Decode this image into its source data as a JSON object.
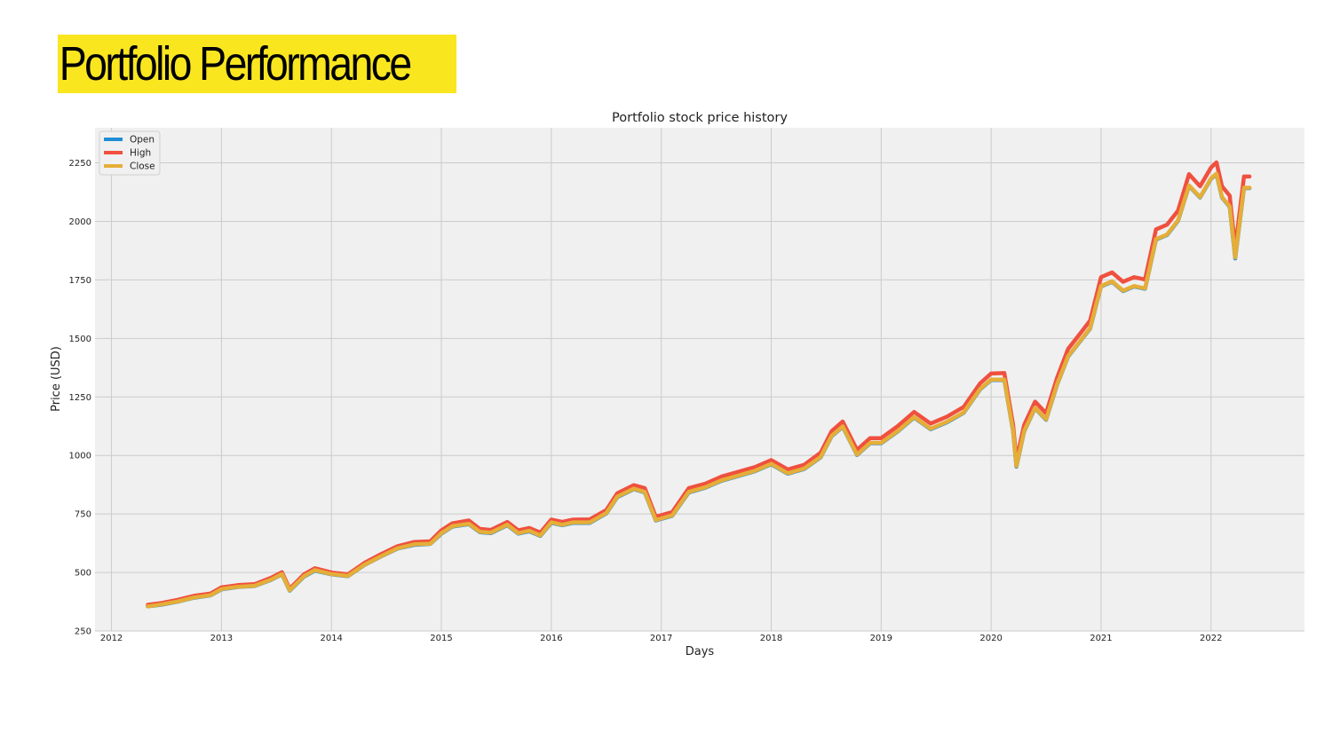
{
  "slide": {
    "title": "Portfolio Performance"
  },
  "colors": {
    "title_highlight": "#f9e61f",
    "open": "#1f8dd6",
    "high": "#f0503f",
    "close": "#e5ae38",
    "plot_bg": "#f0f0f0",
    "grid": "#cbcbcb"
  },
  "chart_data": {
    "type": "line",
    "title": "Portfolio stock price history",
    "xlabel": "Days",
    "ylabel": "Price (USD)",
    "xlim": [
      2011.85,
      2022.85
    ],
    "ylim": [
      250,
      2400
    ],
    "xticks": [
      2012,
      2013,
      2014,
      2015,
      2016,
      2017,
      2018,
      2019,
      2020,
      2021,
      2022
    ],
    "xtick_labels": [
      "2012",
      "2013",
      "2014",
      "2015",
      "2016",
      "2017",
      "2018",
      "2019",
      "2020",
      "2021",
      "2022"
    ],
    "yticks": [
      250,
      500,
      750,
      1000,
      1250,
      1500,
      1750,
      2000,
      2250
    ],
    "ytick_labels": [
      "250",
      "500",
      "750",
      "1000",
      "1250",
      "1500",
      "1750",
      "2000",
      "2250"
    ],
    "grid": true,
    "legend_position": "top-left",
    "x": [
      2012.33,
      2012.45,
      2012.6,
      2012.75,
      2012.9,
      2013.0,
      2013.15,
      2013.3,
      2013.45,
      2013.55,
      2013.62,
      2013.75,
      2013.85,
      2014.0,
      2014.15,
      2014.3,
      2014.45,
      2014.6,
      2014.75,
      2014.9,
      2015.0,
      2015.1,
      2015.25,
      2015.35,
      2015.45,
      2015.6,
      2015.7,
      2015.8,
      2015.9,
      2016.0,
      2016.1,
      2016.2,
      2016.35,
      2016.5,
      2016.6,
      2016.75,
      2016.85,
      2016.95,
      2017.1,
      2017.25,
      2017.4,
      2017.55,
      2017.7,
      2017.85,
      2018.0,
      2018.15,
      2018.3,
      2018.45,
      2018.55,
      2018.65,
      2018.78,
      2018.9,
      2019.0,
      2019.15,
      2019.3,
      2019.45,
      2019.6,
      2019.75,
      2019.9,
      2020.0,
      2020.12,
      2020.2,
      2020.23,
      2020.3,
      2020.4,
      2020.5,
      2020.6,
      2020.7,
      2020.8,
      2020.9,
      2021.0,
      2021.1,
      2021.2,
      2021.3,
      2021.4,
      2021.5,
      2021.6,
      2021.7,
      2021.8,
      2021.9,
      2022.0,
      2022.05,
      2022.1,
      2022.17,
      2022.22,
      2022.3,
      2022.35
    ],
    "series": [
      {
        "name": "Open",
        "values": [
          355,
          362,
          375,
          392,
          402,
          428,
          438,
          442,
          468,
          492,
          422,
          482,
          508,
          492,
          484,
          532,
          568,
          602,
          618,
          622,
          666,
          696,
          706,
          672,
          668,
          702,
          666,
          676,
          656,
          712,
          702,
          712,
          712,
          752,
          822,
          856,
          842,
          722,
          742,
          842,
          862,
          892,
          912,
          932,
          962,
          922,
          942,
          992,
          1082,
          1122,
          1002,
          1052,
          1052,
          1102,
          1162,
          1112,
          1142,
          1182,
          1282,
          1322,
          1322,
          1102,
          952,
          1102,
          1202,
          1152,
          1302,
          1422,
          1482,
          1542,
          1722,
          1742,
          1702,
          1722,
          1712,
          1922,
          1942,
          2002,
          2152,
          2102,
          2182,
          2202,
          2102,
          2062,
          1842,
          2142,
          2142
        ]
      },
      {
        "name": "High",
        "values": [
          362,
          369,
          383,
          400,
          410,
          436,
          446,
          450,
          477,
          501,
          430,
          492,
          518,
          500,
          492,
          541,
          578,
          612,
          630,
          633,
          680,
          710,
          722,
          686,
          682,
          716,
          680,
          690,
          670,
          726,
          716,
          726,
          727,
          767,
          838,
          873,
          860,
          738,
          758,
          860,
          879,
          910,
          930,
          950,
          980,
          940,
          960,
          1012,
          1104,
          1145,
          1024,
          1074,
          1074,
          1125,
          1186,
          1136,
          1166,
          1207,
          1308,
          1350,
          1352,
          1130,
          980,
          1130,
          1230,
          1180,
          1332,
          1455,
          1515,
          1576,
          1762,
          1782,
          1742,
          1762,
          1752,
          1966,
          1986,
          2046,
          2202,
          2150,
          2230,
          2252,
          2150,
          2110,
          1885,
          2192,
          2192
        ]
      },
      {
        "name": "Close",
        "values": [
          355,
          363,
          376,
          393,
          403,
          429,
          439,
          443,
          469,
          493,
          424,
          484,
          510,
          493,
          485,
          533,
          569,
          603,
          620,
          623,
          668,
          698,
          708,
          674,
          670,
          704,
          668,
          678,
          658,
          714,
          704,
          714,
          714,
          754,
          824,
          858,
          844,
          724,
          744,
          844,
          864,
          894,
          914,
          934,
          964,
          924,
          944,
          994,
          1084,
          1124,
          1004,
          1054,
          1054,
          1104,
          1164,
          1114,
          1144,
          1184,
          1284,
          1324,
          1324,
          1104,
          955,
          1104,
          1204,
          1154,
          1304,
          1424,
          1484,
          1544,
          1724,
          1744,
          1704,
          1724,
          1714,
          1924,
          1944,
          2004,
          2154,
          2104,
          2184,
          2204,
          2104,
          2064,
          1846,
          2144,
          2144
        ]
      }
    ]
  }
}
